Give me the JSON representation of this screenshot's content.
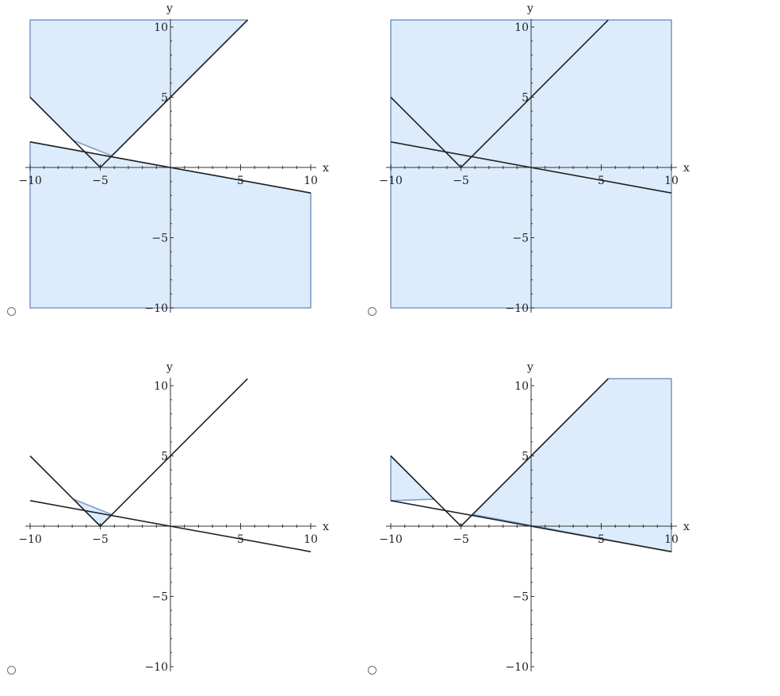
{
  "chart_data": [
    {
      "type": "area",
      "option": "A",
      "xlabel": "x",
      "ylabel": "y",
      "xlim": [
        -10,
        10
      ],
      "ylim": [
        -10,
        10
      ],
      "x_ticks": [
        -10,
        -5,
        5,
        10
      ],
      "y_ticks": [
        -10,
        -5,
        5,
        10
      ],
      "x_tick_labels": [
        "−10",
        "−5",
        "5",
        "10"
      ],
      "y_tick_labels": [
        "−10",
        "−5",
        "5",
        "10"
      ],
      "curves": [
        {
          "points": [
            [
              -10,
              5
            ],
            [
              -5,
              0
            ],
            [
              5.5,
              10.5
            ]
          ]
        },
        {
          "points": [
            [
              -10,
              1.818
            ],
            [
              10,
              -1.818
            ]
          ]
        }
      ],
      "shaded_regions": [
        [
          [
            -10,
            10.5
          ],
          [
            -10,
            5
          ],
          [
            -6.92,
            1.92
          ],
          [
            -4.17,
            0.83
          ],
          [
            5.5,
            10.5
          ]
        ],
        [
          [
            -10,
            1.818
          ],
          [
            10,
            -1.818
          ],
          [
            10,
            -10
          ],
          [
            -10,
            -10
          ]
        ]
      ],
      "fill_color": "#dcecfc",
      "edge_color": "#7d9cc6"
    },
    {
      "type": "area",
      "option": "B",
      "xlabel": "x",
      "ylabel": "y",
      "xlim": [
        -10,
        10
      ],
      "ylim": [
        -10,
        10
      ],
      "x_ticks": [
        -10,
        -5,
        5,
        10
      ],
      "y_ticks": [
        -10,
        -5,
        5,
        10
      ],
      "x_tick_labels": [
        "−10",
        "−5",
        "5",
        "10"
      ],
      "y_tick_labels": [
        "−10",
        "−5",
        "5",
        "10"
      ],
      "curves": [
        {
          "points": [
            [
              -10,
              5
            ],
            [
              -5,
              0
            ],
            [
              5.5,
              10.5
            ]
          ]
        },
        {
          "points": [
            [
              -10,
              1.818
            ],
            [
              10,
              -1.818
            ]
          ]
        }
      ],
      "shaded_regions": [
        [
          [
            -10,
            10.5
          ],
          [
            10,
            10.5
          ],
          [
            10,
            -10
          ],
          [
            -10,
            -10
          ]
        ]
      ],
      "fill_color": "#dcecfc",
      "edge_color": "#7d9cc6"
    },
    {
      "type": "area",
      "option": "C",
      "xlabel": "x",
      "ylabel": "y",
      "xlim": [
        -10,
        10
      ],
      "ylim": [
        -10,
        10
      ],
      "x_ticks": [
        -10,
        -5,
        5,
        10
      ],
      "y_ticks": [
        -10,
        -5,
        5,
        10
      ],
      "x_tick_labels": [
        "−10",
        "−5",
        "5",
        "10"
      ],
      "y_tick_labels": [
        "−10",
        "−5",
        "5",
        "10"
      ],
      "curves": [
        {
          "points": [
            [
              -10,
              5
            ],
            [
              -5,
              0
            ],
            [
              5.5,
              10.5
            ]
          ]
        },
        {
          "points": [
            [
              -10,
              1.818
            ],
            [
              10,
              -1.818
            ]
          ]
        }
      ],
      "shaded_regions": [
        [
          [
            -5,
            0
          ],
          [
            -6.92,
            1.92
          ],
          [
            -4.17,
            0.83
          ]
        ]
      ],
      "fill_color": "#dcecfc",
      "edge_color": "#7d9cc6"
    },
    {
      "type": "area",
      "option": "D",
      "xlabel": "x",
      "ylabel": "y",
      "xlim": [
        -10,
        10
      ],
      "ylim": [
        -10,
        10
      ],
      "x_ticks": [
        -10,
        -5,
        5,
        10
      ],
      "y_ticks": [
        -10,
        -5,
        5,
        10
      ],
      "x_tick_labels": [
        "−10",
        "−5",
        "5",
        "10"
      ],
      "y_tick_labels": [
        "−10",
        "−5",
        "5",
        "10"
      ],
      "curves": [
        {
          "points": [
            [
              -10,
              5
            ],
            [
              -5,
              0
            ],
            [
              5.5,
              10.5
            ]
          ]
        },
        {
          "points": [
            [
              -10,
              1.818
            ],
            [
              10,
              -1.818
            ]
          ]
        }
      ],
      "shaded_regions": [
        [
          [
            -10,
            5
          ],
          [
            -6.92,
            1.92
          ],
          [
            -10,
            1.818
          ]
        ],
        [
          [
            -4.17,
            0.83
          ],
          [
            5.5,
            10.5
          ],
          [
            10,
            10.5
          ],
          [
            10,
            -1.818
          ]
        ]
      ],
      "fill_color": "#dcecfc",
      "edge_color": "#7d9cc6"
    }
  ]
}
